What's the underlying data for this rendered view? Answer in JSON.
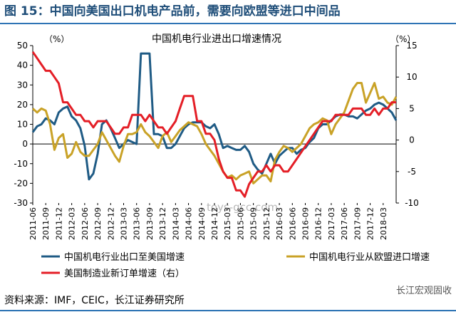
{
  "figure": {
    "title": "图 15：中国向美国出口机电产品前，需要向欧盟等进口中间品",
    "source": "资料来源：IMF，CEIC，长江证券研究所",
    "watermark_center": "toys-gcc.com",
    "watermark_corner": "长江宏观固收"
  },
  "colors": {
    "series_us_export": "#1f5b85",
    "series_eu_import": "#c9a227",
    "series_us_orders": "#e41e26",
    "rule": "#2e74b5"
  },
  "chart_data": {
    "type": "line",
    "title": "中国机电行业进出口增速情况",
    "left_unit": "（%）",
    "right_unit": "（%）",
    "y_left": {
      "min": -30,
      "max": 50,
      "ticks": [
        50,
        40,
        30,
        20,
        10,
        0,
        -10,
        -20,
        -30
      ]
    },
    "y_right": {
      "min": -10,
      "max": 15,
      "ticks": [
        15,
        10,
        5,
        0,
        -5,
        -10
      ]
    },
    "x_start": "2011-06",
    "x_end": "2018-06",
    "x_tick_labels": [
      "2011-06",
      "2011-09",
      "2011-12",
      "2012-03",
      "2012-06",
      "2012-09",
      "2012-12",
      "2013-03",
      "2013-06",
      "2013-09",
      "2013-12",
      "2014-03",
      "2014-06",
      "2014-09",
      "2014-12",
      "2015-03",
      "2015-06",
      "2015-09",
      "2015-12",
      "2016-03",
      "2016-06",
      "2016-09",
      "2016-12",
      "2017-03",
      "2017-06",
      "2017-09",
      "2017-12",
      "2018-03"
    ],
    "grid": false,
    "legend_position": "bottom",
    "series": [
      {
        "name": "中国机电行业出口至美国增速",
        "axis": "left",
        "color": "#1f5b85",
        "points": [
          [
            "2011-06",
            6
          ],
          [
            "2011-07",
            9
          ],
          [
            "2011-08",
            10
          ],
          [
            "2011-09",
            13
          ],
          [
            "2011-10",
            12
          ],
          [
            "2011-11",
            10
          ],
          [
            "2011-12",
            16
          ],
          [
            "2012-01",
            18
          ],
          [
            "2012-02",
            19
          ],
          [
            "2012-03",
            14
          ],
          [
            "2012-04",
            12
          ],
          [
            "2012-05",
            8
          ],
          [
            "2012-06",
            -1
          ],
          [
            "2012-07",
            -18
          ],
          [
            "2012-08",
            -15
          ],
          [
            "2012-09",
            -5
          ],
          [
            "2012-10",
            10
          ],
          [
            "2012-11",
            12
          ],
          [
            "2012-12",
            8
          ],
          [
            "2013-01",
            3
          ],
          [
            "2013-02",
            -2
          ],
          [
            "2013-03",
            0
          ],
          [
            "2013-04",
            2
          ],
          [
            "2013-05",
            1
          ],
          [
            "2013-06",
            0
          ],
          [
            "2013-07",
            46
          ],
          [
            "2013-08",
            46
          ],
          [
            "2013-09",
            46
          ],
          [
            "2013-10",
            5
          ],
          [
            "2013-11",
            5
          ],
          [
            "2013-12",
            4
          ],
          [
            "2014-01",
            -2
          ],
          [
            "2014-02",
            -2
          ],
          [
            "2014-03",
            0
          ],
          [
            "2014-04",
            4
          ],
          [
            "2014-05",
            8
          ],
          [
            "2014-06",
            10
          ],
          [
            "2014-07",
            11
          ],
          [
            "2014-08",
            11
          ],
          [
            "2014-09",
            11
          ],
          [
            "2014-10",
            9
          ],
          [
            "2014-11",
            8
          ],
          [
            "2014-12",
            10
          ],
          [
            "2015-01",
            5
          ],
          [
            "2015-02",
            -2
          ],
          [
            "2015-03",
            -1
          ],
          [
            "2015-04",
            -2
          ],
          [
            "2015-05",
            -3
          ],
          [
            "2015-06",
            -3
          ],
          [
            "2015-07",
            -1
          ],
          [
            "2015-08",
            -4
          ],
          [
            "2015-09",
            -10
          ],
          [
            "2015-10",
            -13
          ],
          [
            "2015-11",
            -15
          ],
          [
            "2015-12",
            -10
          ],
          [
            "2016-01",
            -5
          ],
          [
            "2016-02",
            -10
          ],
          [
            "2016-03",
            -6
          ],
          [
            "2016-04",
            -4
          ],
          [
            "2016-05",
            -2
          ],
          [
            "2016-06",
            -2
          ],
          [
            "2016-07",
            -5
          ],
          [
            "2016-08",
            -3
          ],
          [
            "2016-09",
            -2
          ],
          [
            "2016-10",
            1
          ],
          [
            "2016-11",
            3
          ],
          [
            "2016-12",
            8
          ],
          [
            "2017-01",
            10
          ],
          [
            "2017-02",
            10
          ],
          [
            "2017-03",
            12
          ],
          [
            "2017-04",
            14
          ],
          [
            "2017-05",
            15
          ],
          [
            "2017-06",
            15
          ],
          [
            "2017-07",
            14
          ],
          [
            "2017-08",
            14
          ],
          [
            "2017-09",
            13
          ],
          [
            "2017-10",
            15
          ],
          [
            "2017-11",
            17
          ],
          [
            "2017-12",
            18
          ],
          [
            "2018-01",
            20
          ],
          [
            "2018-02",
            21
          ],
          [
            "2018-03",
            20
          ],
          [
            "2018-04",
            18
          ],
          [
            "2018-05",
            16
          ],
          [
            "2018-06",
            12
          ]
        ]
      },
      {
        "name": "中国机电行业从欧盟进口增速",
        "axis": "left",
        "color": "#c9a227",
        "points": [
          [
            "2011-06",
            18
          ],
          [
            "2011-07",
            16
          ],
          [
            "2011-08",
            18
          ],
          [
            "2011-09",
            17
          ],
          [
            "2011-10",
            10
          ],
          [
            "2011-11",
            -3
          ],
          [
            "2011-12",
            3
          ],
          [
            "2012-01",
            5
          ],
          [
            "2012-02",
            -7
          ],
          [
            "2012-03",
            -5
          ],
          [
            "2012-04",
            1
          ],
          [
            "2012-05",
            -4
          ],
          [
            "2012-06",
            -6
          ],
          [
            "2012-07",
            -6
          ],
          [
            "2012-08",
            -3
          ],
          [
            "2012-09",
            0
          ],
          [
            "2012-10",
            6
          ],
          [
            "2012-11",
            2
          ],
          [
            "2012-12",
            -2
          ],
          [
            "2013-01",
            -6
          ],
          [
            "2013-02",
            -9
          ],
          [
            "2013-03",
            -1
          ],
          [
            "2013-04",
            5
          ],
          [
            "2013-05",
            5
          ],
          [
            "2013-06",
            6
          ],
          [
            "2013-07",
            10
          ],
          [
            "2013-08",
            6
          ],
          [
            "2013-09",
            4
          ],
          [
            "2013-10",
            1
          ],
          [
            "2013-11",
            -2
          ],
          [
            "2013-12",
            4
          ],
          [
            "2014-01",
            6
          ],
          [
            "2014-02",
            1
          ],
          [
            "2014-03",
            4
          ],
          [
            "2014-04",
            7
          ],
          [
            "2014-05",
            9
          ],
          [
            "2014-06",
            11
          ],
          [
            "2014-07",
            10
          ],
          [
            "2014-08",
            9
          ],
          [
            "2014-09",
            5
          ],
          [
            "2014-10",
            0
          ],
          [
            "2014-11",
            -3
          ],
          [
            "2014-12",
            -6
          ],
          [
            "2015-01",
            -10
          ],
          [
            "2015-02",
            -14
          ],
          [
            "2015-03",
            -17
          ],
          [
            "2015-04",
            -16
          ],
          [
            "2015-05",
            -18
          ],
          [
            "2015-06",
            -16
          ],
          [
            "2015-07",
            -15
          ],
          [
            "2015-08",
            -14
          ],
          [
            "2015-09",
            -20
          ],
          [
            "2015-10",
            -18
          ],
          [
            "2015-11",
            -16
          ],
          [
            "2015-12",
            -16
          ],
          [
            "2016-01",
            -19
          ],
          [
            "2016-02",
            -8
          ],
          [
            "2016-03",
            -4
          ],
          [
            "2016-04",
            -1
          ],
          [
            "2016-05",
            -2
          ],
          [
            "2016-06",
            -4
          ],
          [
            "2016-07",
            -2
          ],
          [
            "2016-08",
            0
          ],
          [
            "2016-09",
            4
          ],
          [
            "2016-10",
            8
          ],
          [
            "2016-11",
            10
          ],
          [
            "2016-12",
            11
          ],
          [
            "2017-01",
            13
          ],
          [
            "2017-02",
            12
          ],
          [
            "2017-03",
            5
          ],
          [
            "2017-04",
            10
          ],
          [
            "2017-05",
            13
          ],
          [
            "2017-06",
            16
          ],
          [
            "2017-07",
            22
          ],
          [
            "2017-08",
            28
          ],
          [
            "2017-09",
            31
          ],
          [
            "2017-10",
            31
          ],
          [
            "2017-11",
            21
          ],
          [
            "2017-12",
            26
          ],
          [
            "2018-01",
            31
          ],
          [
            "2018-02",
            23
          ],
          [
            "2018-03",
            24
          ],
          [
            "2018-04",
            21
          ],
          [
            "2018-05",
            20
          ],
          [
            "2018-06",
            24
          ]
        ]
      },
      {
        "name": "美国制造业新订单增速（右）",
        "axis": "right",
        "color": "#e41e26",
        "points": [
          [
            "2011-06",
            14
          ],
          [
            "2011-07",
            13
          ],
          [
            "2011-08",
            12
          ],
          [
            "2011-09",
            11
          ],
          [
            "2011-10",
            11
          ],
          [
            "2011-11",
            10
          ],
          [
            "2011-12",
            9
          ],
          [
            "2012-01",
            6
          ],
          [
            "2012-02",
            6
          ],
          [
            "2012-03",
            5
          ],
          [
            "2012-04",
            4
          ],
          [
            "2012-05",
            4
          ],
          [
            "2012-06",
            3
          ],
          [
            "2012-07",
            3
          ],
          [
            "2012-08",
            2
          ],
          [
            "2012-09",
            3
          ],
          [
            "2012-10",
            3
          ],
          [
            "2012-11",
            3
          ],
          [
            "2012-12",
            2
          ],
          [
            "2013-01",
            1
          ],
          [
            "2013-02",
            1
          ],
          [
            "2013-03",
            2
          ],
          [
            "2013-04",
            2
          ],
          [
            "2013-05",
            4
          ],
          [
            "2013-06",
            4
          ],
          [
            "2013-07",
            4
          ],
          [
            "2013-08",
            3
          ],
          [
            "2013-09",
            4
          ],
          [
            "2013-10",
            3
          ],
          [
            "2013-11",
            2
          ],
          [
            "2013-12",
            2
          ],
          [
            "2014-01",
            1
          ],
          [
            "2014-02",
            2
          ],
          [
            "2014-03",
            3
          ],
          [
            "2014-04",
            5
          ],
          [
            "2014-05",
            7
          ],
          [
            "2014-06",
            7
          ],
          [
            "2014-07",
            7
          ],
          [
            "2014-08",
            3
          ],
          [
            "2014-09",
            3
          ],
          [
            "2014-10",
            1
          ],
          [
            "2014-11",
            1
          ],
          [
            "2014-12",
            0
          ],
          [
            "2015-01",
            -3
          ],
          [
            "2015-02",
            -5
          ],
          [
            "2015-03",
            -6
          ],
          [
            "2015-04",
            -6
          ],
          [
            "2015-05",
            -8
          ],
          [
            "2015-06",
            -8
          ],
          [
            "2015-07",
            -9
          ],
          [
            "2015-08",
            -7
          ],
          [
            "2015-09",
            -6
          ],
          [
            "2015-10",
            -5
          ],
          [
            "2015-11",
            -5
          ],
          [
            "2015-12",
            -4
          ],
          [
            "2016-01",
            -5
          ],
          [
            "2016-02",
            -4
          ],
          [
            "2016-03",
            -4
          ],
          [
            "2016-04",
            -5
          ],
          [
            "2016-05",
            -5
          ],
          [
            "2016-06",
            -4
          ],
          [
            "2016-07",
            -3
          ],
          [
            "2016-08",
            -2
          ],
          [
            "2016-09",
            -1
          ],
          [
            "2016-10",
            0
          ],
          [
            "2016-11",
            1
          ],
          [
            "2016-12",
            2
          ],
          [
            "2017-01",
            3
          ],
          [
            "2017-02",
            3
          ],
          [
            "2017-03",
            3
          ],
          [
            "2017-04",
            4
          ],
          [
            "2017-05",
            4
          ],
          [
            "2017-06",
            4
          ],
          [
            "2017-07",
            4
          ],
          [
            "2017-08",
            5
          ],
          [
            "2017-09",
            5
          ],
          [
            "2017-10",
            5
          ],
          [
            "2017-11",
            4
          ],
          [
            "2017-12",
            4
          ],
          [
            "2018-01",
            5
          ],
          [
            "2018-02",
            4
          ],
          [
            "2018-03",
            5
          ],
          [
            "2018-04",
            5
          ],
          [
            "2018-05",
            6
          ],
          [
            "2018-06",
            6
          ]
        ]
      }
    ]
  }
}
